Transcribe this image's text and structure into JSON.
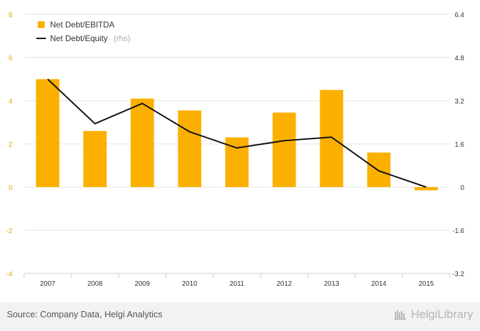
{
  "chart_data": {
    "type": "bar+line",
    "categories": [
      "2007",
      "2008",
      "2009",
      "2010",
      "2011",
      "2012",
      "2013",
      "2014",
      "2015"
    ],
    "series": [
      {
        "name": "Net Debt/EBITDA",
        "type": "bar",
        "axis": "left",
        "color": "#fbb000",
        "values": [
          5.0,
          2.6,
          4.1,
          3.55,
          2.3,
          3.45,
          4.5,
          1.6,
          -0.15
        ]
      },
      {
        "name": "Net Debt/Equity",
        "type": "line",
        "axis": "right",
        "color": "#111111",
        "values": [
          4.0,
          2.35,
          3.1,
          2.05,
          1.45,
          1.72,
          1.85,
          0.6,
          0.0
        ]
      }
    ],
    "y_left": {
      "ylim": [
        -4,
        8
      ],
      "ticks": [
        "-4",
        "-2",
        "0",
        "2",
        "4",
        "6",
        "8"
      ]
    },
    "y_right": {
      "ylim": [
        -3.2,
        6.4
      ],
      "ticks": [
        "-3.2",
        "-1.6",
        "0",
        "1.6",
        "3.2",
        "4.8",
        "6.4"
      ]
    },
    "legend": {
      "placement": "top-left",
      "entries": [
        "Net Debt/EBITDA",
        "Net Debt/Equity"
      ],
      "rhs_suffix": "(rhs)"
    },
    "grid": true
  },
  "footer": {
    "source": "Source: Company Data, Helgi Analytics",
    "brand": "HelgiLibrary"
  }
}
